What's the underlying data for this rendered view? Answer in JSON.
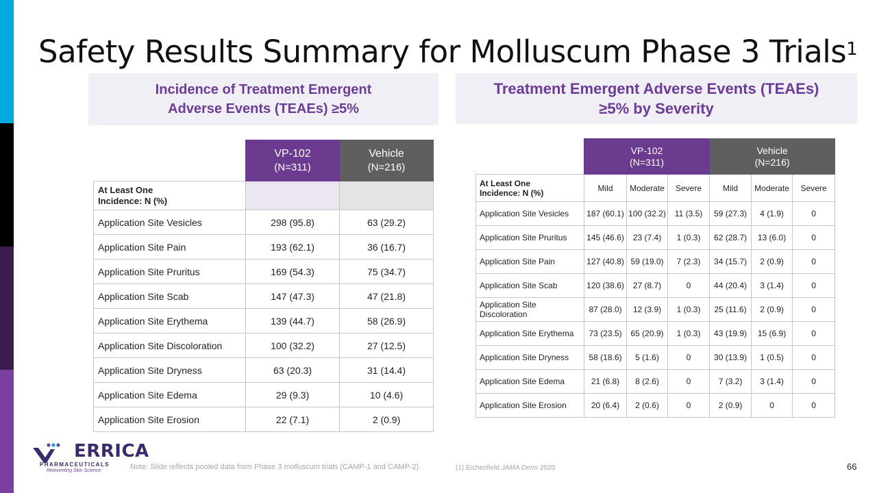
{
  "title": {
    "text": "Safety Results Summary for Molluscum Phase 3 Trials",
    "superscript": "1"
  },
  "left_panel": {
    "header_line1": "Incidence of Treatment Emergent",
    "header_line2": "Adverse Events (TEAEs) ≥5%",
    "col_vp_name": "VP-102",
    "col_vp_n": "(N=311)",
    "col_vh_name": "Vehicle",
    "col_vh_n": "(N=216)",
    "first_row_label_line1": "At Least One",
    "first_row_label_line2": "Incidence: N (%)",
    "rows": [
      {
        "label": "Application Site Vesicles",
        "vp": "298 (95.8)",
        "vh": "63 (29.2)"
      },
      {
        "label": "Application Site Pain",
        "vp": "193 (62.1)",
        "vh": "36 (16.7)"
      },
      {
        "label": "Application Site Pruritus",
        "vp": "169 (54.3)",
        "vh": "75 (34.7)"
      },
      {
        "label": "Application Site Scab",
        "vp": "147 (47.3)",
        "vh": "47 (21.8)"
      },
      {
        "label": "Application Site Erythema",
        "vp": "139 (44.7)",
        "vh": "58 (26.9)"
      },
      {
        "label": "Application Site Discoloration",
        "vp": "100 (32.2)",
        "vh": "27 (12.5)"
      },
      {
        "label": "Application Site Dryness",
        "vp": "63 (20.3)",
        "vh": "31 (14.4)"
      },
      {
        "label": "Application Site Edema",
        "vp": "29 (9.3)",
        "vh": "10 (4.6)"
      },
      {
        "label": "Application Site Erosion",
        "vp": "22 (7.1)",
        "vh": "2 (0.9)"
      }
    ]
  },
  "right_panel": {
    "header_line1": "Treatment Emergent Adverse Events (TEAEs)",
    "header_line2": "≥5% by Severity",
    "col_vp_name": "VP-102",
    "col_vp_n": "(N=311)",
    "col_vh_name": "Vehicle",
    "col_vh_n": "(N=216)",
    "first_row_label_line1": "At Least One",
    "first_row_label_line2": "Incidence: N (%)",
    "severity": [
      "Mild",
      "Moderate",
      "Severe",
      "Mild",
      "Moderate",
      "Severe"
    ],
    "rows": [
      {
        "label": "Application Site Vesicles",
        "v": [
          "187 (60.1)",
          "100 (32.2)",
          "11 (3.5)",
          "59 (27.3)",
          "4 (1.9)",
          "0"
        ]
      },
      {
        "label": "Application Site Pruritus",
        "v": [
          "145 (46.6)",
          "23 (7.4)",
          "1 (0.3)",
          "62 (28.7)",
          "13 (6.0)",
          "0"
        ]
      },
      {
        "label": "Application Site Pain",
        "v": [
          "127 (40.8)",
          "59 (19.0)",
          "7 (2.3)",
          "34 (15.7)",
          "2 (0.9)",
          "0"
        ]
      },
      {
        "label": "Application Site Scab",
        "v": [
          "120 (38.6)",
          "27 (8.7)",
          "0",
          "44 (20.4)",
          "3 (1.4)",
          "0"
        ]
      },
      {
        "label": "Application Site Discoloration",
        "v": [
          "87 (28.0)",
          "12 (3.9)",
          "1 (0.3)",
          "25 (11.6)",
          "2 (0.9)",
          "0"
        ]
      },
      {
        "label": "Application Site Erythema",
        "v": [
          "73 (23.5)",
          "65 (20.9)",
          "1 (0.3)",
          "43 (19.9)",
          "15 (6.9)",
          "0"
        ]
      },
      {
        "label": "Application Site Dryness",
        "v": [
          "58 (18.6)",
          "5 (1.6)",
          "0",
          "30 (13.9)",
          "1 (0.5)",
          "0"
        ]
      },
      {
        "label": "Application Site Edema",
        "v": [
          "21 (6.8)",
          "8 (2.6)",
          "0",
          "7 (3.2)",
          "3 (1.4)",
          "0"
        ]
      },
      {
        "label": "Application Site Erosion",
        "v": [
          "20 (6.4)",
          "2 (0.6)",
          "0",
          "2 (0.9)",
          "0",
          "0"
        ]
      }
    ]
  },
  "logo": {
    "name": "ERRICA",
    "sub": "PHARMACEUTICALS",
    "tagline": "Reinventing Skin Science"
  },
  "footer": {
    "note": "Note: Slide reflects pooled data from Phase 3 molluscum trials (CAMP-1 and CAMP-2)",
    "ref_prefix": "(1) Eichenfield",
    "ref_journal": "JAMA Derm",
    "ref_year": "2020",
    "page_number": "66"
  },
  "colors": {
    "vp_header": "#6b3b8f",
    "vehicle_header": "#5f5f5f",
    "header_text": "#6b3b9a",
    "header_bg": "#f0eff5",
    "stripe": [
      "#00a9e0",
      "#000000",
      "#3a1d4d",
      "#7b3fa0"
    ]
  }
}
